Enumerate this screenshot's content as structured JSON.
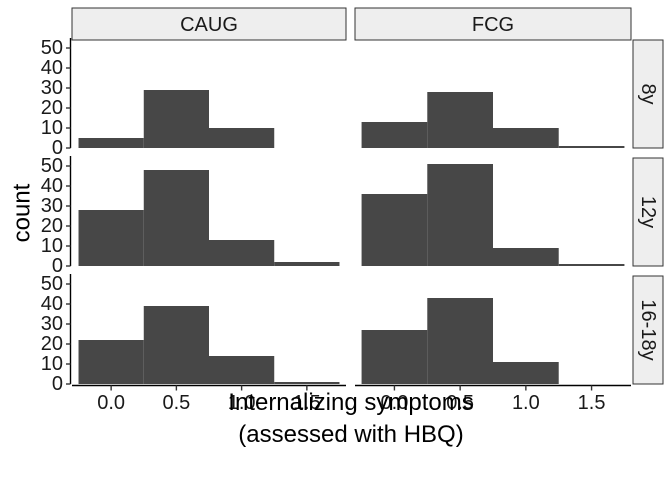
{
  "chart_data": {
    "type": "bar",
    "subtype": "faceted-histogram",
    "bar_color": "#474747",
    "strip_fill": "#eeeeee",
    "xlabel_line1": "Internalizing symptoms",
    "xlabel_line2": "(assessed with HBQ)",
    "ylabel": "count",
    "xlim": [
      -0.3,
      1.8
    ],
    "ylim": [
      0,
      55
    ],
    "xticks": [
      0.0,
      0.5,
      1.0,
      1.5
    ],
    "xtick_labels": [
      "0.0",
      "0.5",
      "1.0",
      "1.5"
    ],
    "yticks": [
      0,
      10,
      20,
      30,
      40,
      50
    ],
    "ytick_labels": [
      "0",
      "10",
      "20",
      "30",
      "40",
      "50"
    ],
    "bin_width": 0.5,
    "bin_centers": [
      0.0,
      0.5,
      1.0,
      1.5
    ],
    "columns": [
      "CAUG",
      "FCG"
    ],
    "rows": [
      "8y",
      "12y",
      "16-18y"
    ],
    "panels": [
      {
        "column": "CAUG",
        "row": "8y",
        "values": [
          5,
          29,
          10,
          0
        ]
      },
      {
        "column": "FCG",
        "row": "8y",
        "values": [
          13,
          28,
          10,
          1
        ]
      },
      {
        "column": "CAUG",
        "row": "12y",
        "values": [
          28,
          48,
          13,
          2
        ]
      },
      {
        "column": "FCG",
        "row": "12y",
        "values": [
          36,
          51,
          9,
          1
        ]
      },
      {
        "column": "CAUG",
        "row": "16-18y",
        "values": [
          22,
          39,
          14,
          1
        ]
      },
      {
        "column": "FCG",
        "row": "16-18y",
        "values": [
          27,
          43,
          11,
          0
        ]
      }
    ]
  }
}
